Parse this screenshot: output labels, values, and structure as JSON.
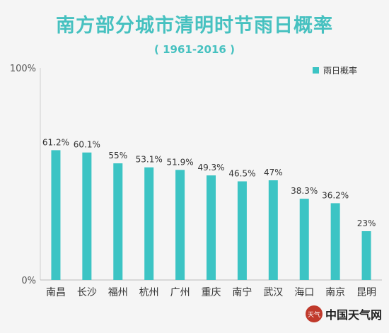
{
  "chart_data": {
    "type": "bar",
    "title": "南方部分城市清明时节雨日概率",
    "subtitle": "( 1961-2016 )",
    "categories": [
      "南昌",
      "长沙",
      "福州",
      "杭州",
      "广州",
      "重庆",
      "南宁",
      "武汉",
      "海口",
      "南京",
      "昆明"
    ],
    "series": [
      {
        "name": "雨日概率",
        "values": [
          61.2,
          60.1,
          55,
          53.1,
          51.9,
          49.3,
          46.5,
          47,
          38.3,
          36.2,
          23
        ],
        "labels": [
          "61.2%",
          "60.1%",
          "55%",
          "53.1%",
          "51.9%",
          "49.3%",
          "46.5%",
          "47%",
          "38.3%",
          "36.2%",
          "23%"
        ]
      }
    ],
    "ylim": [
      0,
      100
    ],
    "yticks": [
      "0%",
      "100%"
    ],
    "legend": "top-right",
    "grid": false,
    "bar_color": "#3cc4c4"
  },
  "watermark": {
    "logo_text": "天气",
    "text": "中国天气网"
  }
}
